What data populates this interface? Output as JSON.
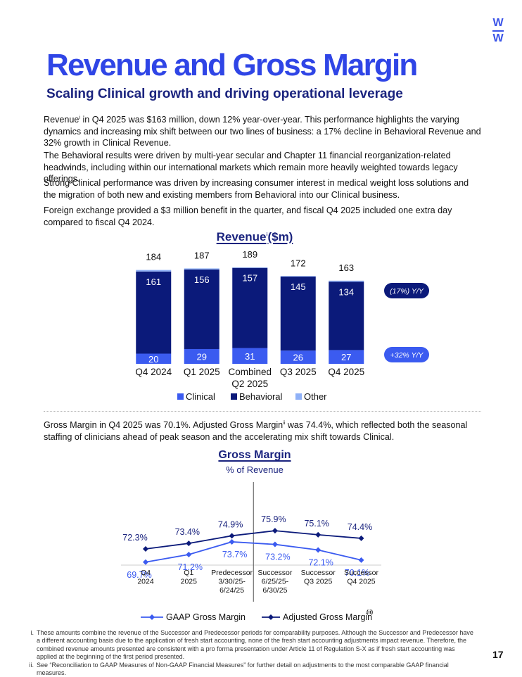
{
  "logo": {
    "top": "W",
    "bottom": "W"
  },
  "header": {
    "title": "Revenue and Gross Margin",
    "subtitle": "Scaling Clinical growth and driving operational leverage"
  },
  "paragraphs": {
    "p1_a": "Revenue",
    "p1_sup": "i",
    "p1_b": " in Q4 2025 was $163 million, down 12% year-over-year. This performance highlights the varying dynamics and increasing mix shift between our two lines of business: a 17% decline in Behavioral Revenue and 32% growth in Clinical Revenue.",
    "p2": "The Behavioral results were driven by multi-year secular and Chapter 11 financial reorganization-related headwinds, including within our international markets which remain more heavily weighted towards legacy offerings.",
    "p3": "Strong Clinical performance was driven by increasing consumer interest in medical weight loss solutions and the migration of both new and existing members from Behavioral into our Clinical business.",
    "p4": "Foreign exchange provided a $3 million benefit in the quarter, and fiscal Q4 2025 included one extra day compared to fiscal Q4 2024.",
    "gm_a": "Gross Margin in Q4 2025 was 70.1%. Adjusted Gross Margin",
    "gm_sup": "ii",
    "gm_b": " was 74.4%, which reflected both the seasonal staffing of clinicians ahead of peak season and the accelerating mix shift towards Clinical."
  },
  "revenue_chart_title": {
    "main": "Revenue",
    "sup": "i",
    "unit": "($m)"
  },
  "gross_margin_title": {
    "main": "Gross Margin",
    "sub": "% of Revenue"
  },
  "colors": {
    "clinical": "#3b5bf0",
    "behavioral": "#0b1a7a",
    "other": "#8fb1f7",
    "brand": "#2f45e6",
    "navy": "#1a237e"
  },
  "chart_data": [
    {
      "type": "bar",
      "stacked": true,
      "title": "Revenue(i) ($m)",
      "categories": [
        [
          "Q4 2024"
        ],
        [
          "Q1 2025"
        ],
        [
          "Combined",
          "Q2 2025"
        ],
        [
          "Q3 2025"
        ],
        [
          "Q4 2025"
        ]
      ],
      "series": [
        {
          "name": "Clinical",
          "values": [
            20,
            29,
            31,
            26,
            27
          ]
        },
        {
          "name": "Behavioral",
          "values": [
            161,
            156,
            157,
            145,
            134
          ]
        },
        {
          "name": "Other",
          "values": [
            3,
            2,
            1,
            1,
            2
          ]
        }
      ],
      "totals": [
        184,
        187,
        189,
        172,
        163
      ],
      "ylim": [
        0,
        200
      ],
      "legend": [
        "Clinical",
        "Behavioral",
        "Other"
      ],
      "legend_position": "bottom",
      "annotations": [
        {
          "label": "(17%) Y/Y",
          "series": "Behavioral"
        },
        {
          "label": "+32% Y/Y",
          "series": "Clinical"
        }
      ]
    },
    {
      "type": "line",
      "title": "Gross Margin",
      "subtitle": "% of Revenue",
      "categories": [
        [
          "Q4",
          "2024"
        ],
        [
          "Q1",
          "2025"
        ],
        [
          "Predecessor",
          "3/30/25-",
          "6/24/25"
        ],
        [
          "Successor",
          "6/25/25-",
          "6/30/25"
        ],
        [
          "Successor",
          "Q3 2025"
        ],
        [
          "Successor",
          "Q4 2025"
        ]
      ],
      "series": [
        {
          "name": "GAAP Gross Margin",
          "values": [
            69.7,
            71.2,
            73.7,
            73.2,
            72.1,
            70.1
          ],
          "labels": [
            "69.7%",
            "71.2%",
            "73.7%",
            "73.2%",
            "72.1%",
            "70.1%"
          ]
        },
        {
          "name": "Adjusted Gross Margin",
          "values": [
            72.3,
            73.4,
            74.9,
            75.9,
            75.1,
            74.4
          ],
          "labels": [
            "72.3%",
            "73.4%",
            "74.9%",
            "75.9%",
            "75.1%",
            "74.4%"
          ]
        }
      ],
      "divider_between": [
        "Predecessor",
        "Successor"
      ],
      "legend": [
        "GAAP Gross Margin",
        "Adjusted Gross Margin"
      ],
      "legend_note": "(ii)",
      "legend_position": "bottom"
    }
  ],
  "footnotes": [
    {
      "mark": "i.",
      "text": "These amounts combine the revenue of the Successor and Predecessor periods for comparability purposes. Although the Successor and Predecessor have a different accounting basis due to the application of fresh start accounting, none of the fresh start accounting adjustments impact revenue. Therefore, the combined revenue amounts presented are consistent with a pro forma presentation under Article 11 of Regulation S-X as if fresh start accounting was applied at the beginning of the first period presented."
    },
    {
      "mark": "ii.",
      "text": "See “Reconciliation to GAAP Measures of Non-GAAP Financial Measures” for further detail on adjustments to the most comparable GAAP financial measures."
    }
  ],
  "page_number": "17"
}
